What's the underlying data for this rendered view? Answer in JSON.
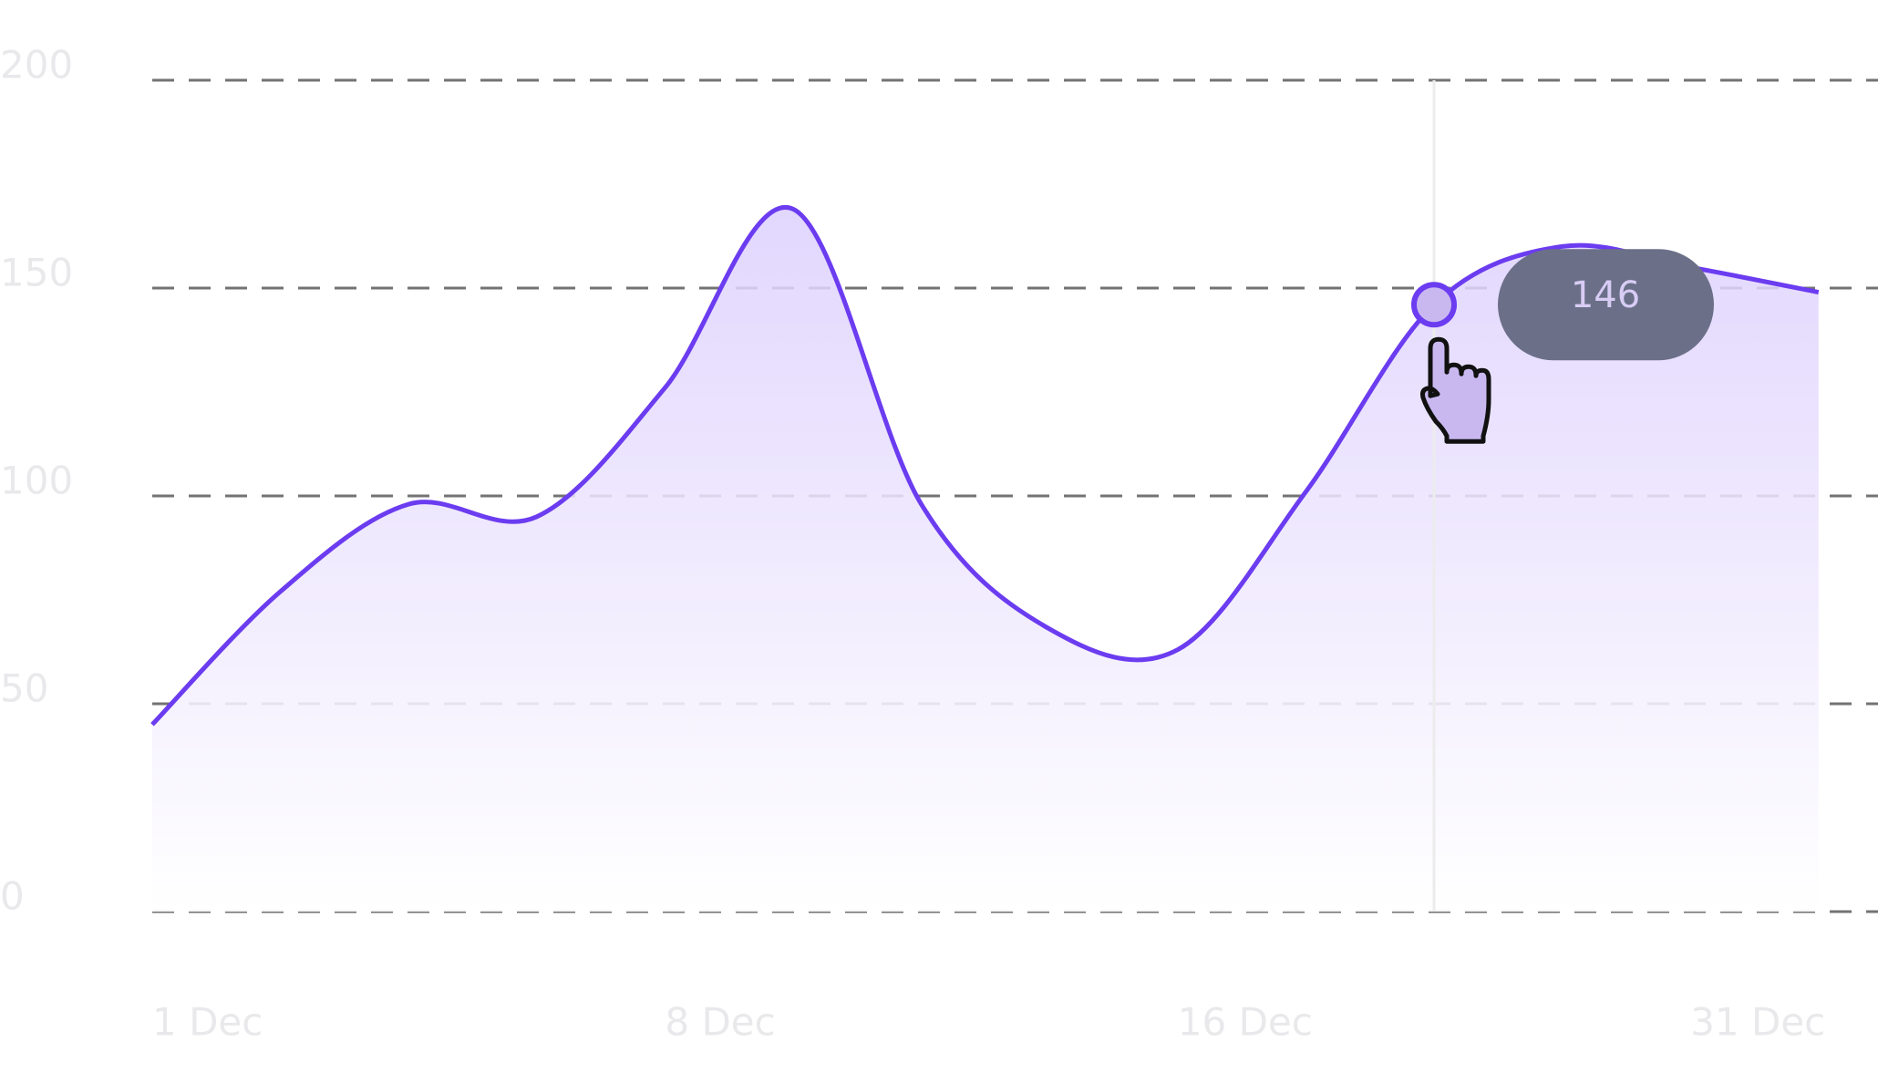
{
  "chart_data": {
    "type": "line",
    "categories": [
      "1 Dec",
      null,
      null,
      null,
      "8 Dec",
      null,
      null,
      null,
      "16 Dec",
      null,
      null,
      null,
      "31 Dec",
      null
    ],
    "values": [
      45,
      77,
      98,
      95,
      126,
      169,
      98,
      68,
      63,
      101,
      146,
      160,
      155,
      149
    ],
    "color": "#6b3cf0",
    "ylim": [
      0,
      200
    ],
    "yticks": [
      0,
      50,
      100,
      150,
      200
    ],
    "grid": true,
    "highlight": 10
  }
}
